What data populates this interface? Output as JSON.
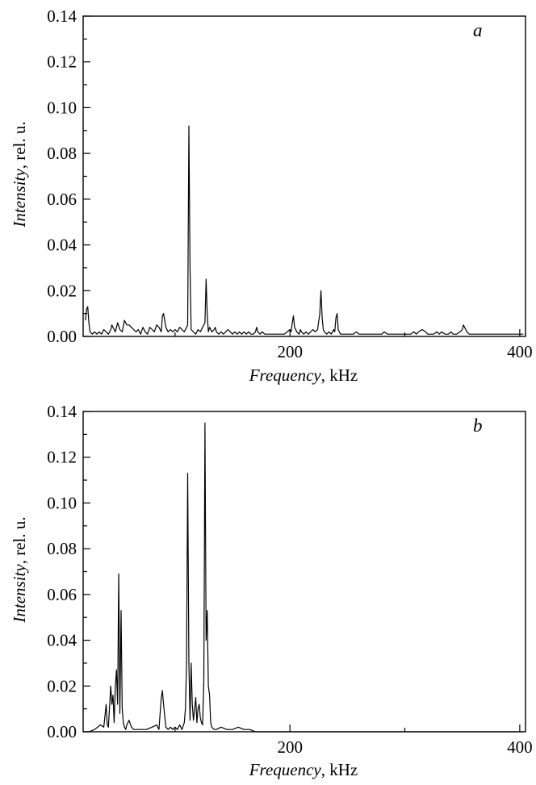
{
  "chart_data": [
    {
      "type": "line",
      "panel_label": "a",
      "xlabel_italic": "Frequency",
      "xlabel_unit": ", kHz",
      "ylabel_italic": "Intensity",
      "ylabel_unit": ", rel. u.",
      "xlim": [
        20,
        405
      ],
      "ylim": [
        0,
        0.14
      ],
      "x_ticks": [
        200,
        400
      ],
      "y_ticks": [
        0.0,
        0.02,
        0.04,
        0.06,
        0.08,
        0.1,
        0.12,
        0.14
      ],
      "x_tick_labels": [
        "200",
        "400"
      ],
      "y_tick_labels": [
        "0.00",
        "0.02",
        "0.04",
        "0.06",
        "0.08",
        "0.10",
        "0.12",
        "0.14"
      ],
      "grid": false,
      "series": [
        {
          "x": [
            22,
            23,
            24,
            25,
            26,
            28,
            30,
            32,
            34,
            36,
            38,
            40,
            42,
            44,
            45,
            46,
            48,
            49,
            50,
            52,
            54,
            56,
            58,
            60,
            62,
            64,
            66,
            68,
            70,
            72,
            74,
            76,
            78,
            80,
            82,
            84,
            86,
            88,
            89,
            90,
            92,
            94,
            96,
            98,
            100,
            102,
            104,
            106,
            108,
            110,
            111,
            112,
            113,
            114,
            116,
            118,
            120,
            122,
            124,
            126,
            127,
            128,
            129,
            130,
            132,
            134,
            135,
            136,
            138,
            140,
            142,
            144,
            146,
            148,
            150,
            152,
            154,
            156,
            158,
            160,
            162,
            164,
            166,
            168,
            170,
            171,
            172,
            174,
            176,
            178,
            180,
            185,
            190,
            195,
            200,
            201,
            202,
            203,
            204,
            206,
            208,
            209,
            210,
            212,
            214,
            216,
            218,
            220,
            222,
            224,
            226,
            227,
            228,
            229,
            230,
            232,
            234,
            236,
            238,
            239,
            240,
            241,
            242,
            244,
            246,
            250,
            255,
            258,
            260,
            262,
            265,
            270,
            275,
            280,
            282,
            285,
            290,
            295,
            300,
            305,
            308,
            310,
            312,
            315,
            318,
            320,
            322,
            325,
            328,
            330,
            332,
            335,
            338,
            340,
            342,
            345,
            348,
            350,
            351,
            352,
            354,
            356,
            358,
            360,
            365,
            370,
            375,
            380,
            385,
            390,
            395,
            400,
            403
          ],
          "y": [
            0.007,
            0.012,
            0.013,
            0.006,
            0.002,
            0.001,
            0.002,
            0.001,
            0.002,
            0.001,
            0.003,
            0.002,
            0.001,
            0.003,
            0.005,
            0.004,
            0.002,
            0.004,
            0.006,
            0.003,
            0.002,
            0.007,
            0.005,
            0.005,
            0.004,
            0.003,
            0.002,
            0.003,
            0.001,
            0.004,
            0.002,
            0.001,
            0.004,
            0.003,
            0.002,
            0.005,
            0.004,
            0.002,
            0.009,
            0.01,
            0.004,
            0.002,
            0.003,
            0.002,
            0.003,
            0.002,
            0.004,
            0.003,
            0.002,
            0.004,
            0.005,
            0.092,
            0.03,
            0.003,
            0.002,
            0.001,
            0.003,
            0.002,
            0.004,
            0.006,
            0.025,
            0.01,
            0.002,
            0.004,
            0.002,
            0.003,
            0.004,
            0.002,
            0.001,
            0.002,
            0.001,
            0.002,
            0.003,
            0.002,
            0.001,
            0.002,
            0.001,
            0.002,
            0.001,
            0.002,
            0.001,
            0.002,
            0.001,
            0.001,
            0.002,
            0.004,
            0.002,
            0.001,
            0.002,
            0.001,
            0.001,
            0.001,
            0.001,
            0.001,
            0.003,
            0.002,
            0.006,
            0.009,
            0.004,
            0.002,
            0.001,
            0.003,
            0.002,
            0.001,
            0.002,
            0.001,
            0.002,
            0.003,
            0.002,
            0.003,
            0.01,
            0.02,
            0.008,
            0.003,
            0.002,
            0.001,
            0.002,
            0.001,
            0.003,
            0.002,
            0.008,
            0.01,
            0.003,
            0.001,
            0.001,
            0.001,
            0.001,
            0.002,
            0.001,
            0.001,
            0.001,
            0.001,
            0.001,
            0.001,
            0.002,
            0.001,
            0.001,
            0.001,
            0.001,
            0.001,
            0.002,
            0.001,
            0.002,
            0.003,
            0.002,
            0.001,
            0.001,
            0.001,
            0.002,
            0.001,
            0.002,
            0.001,
            0.001,
            0.002,
            0.001,
            0.001,
            0.002,
            0.003,
            0.005,
            0.004,
            0.002,
            0.001,
            0.001,
            0.001,
            0.001,
            0.001,
            0.001,
            0.001,
            0.001,
            0.001,
            0.001,
            0.001,
            0.001
          ]
        }
      ]
    },
    {
      "type": "line",
      "panel_label": "b",
      "xlabel_italic": "Frequency",
      "xlabel_unit": ", kHz",
      "ylabel_italic": "Intensity",
      "ylabel_unit": ", rel. u.",
      "xlim": [
        20,
        405
      ],
      "ylim": [
        0,
        0.14
      ],
      "x_ticks": [
        200,
        400
      ],
      "y_ticks": [
        0.0,
        0.02,
        0.04,
        0.06,
        0.08,
        0.1,
        0.12,
        0.14
      ],
      "x_tick_labels": [
        "200",
        "400"
      ],
      "y_tick_labels": [
        "0.00",
        "0.02",
        "0.04",
        "0.06",
        "0.08",
        "0.10",
        "0.12",
        "0.14"
      ],
      "grid": false,
      "series": [
        {
          "x": [
            20,
            25,
            30,
            35,
            38,
            40,
            41,
            42,
            44,
            45,
            46,
            47,
            48,
            49,
            50,
            51,
            52,
            53,
            54,
            55,
            56,
            57,
            58,
            60,
            62,
            64,
            66,
            70,
            75,
            80,
            84,
            86,
            88,
            89,
            90,
            92,
            94,
            96,
            98,
            100,
            102,
            104,
            106,
            108,
            109,
            110,
            111,
            112,
            113,
            114,
            115,
            116,
            117,
            118,
            119,
            120,
            121,
            122,
            123,
            124,
            125,
            126,
            127,
            128,
            129,
            130,
            131,
            132,
            134,
            136,
            140,
            145,
            150,
            155,
            160,
            165,
            170,
            180,
            200,
            250,
            300,
            350,
            400,
            403
          ],
          "y": [
            0.0,
            0.0,
            0.001,
            0.003,
            0.002,
            0.012,
            0.003,
            0.002,
            0.02,
            0.012,
            0.016,
            0.004,
            0.02,
            0.027,
            0.012,
            0.069,
            0.008,
            0.053,
            0.01,
            0.004,
            0.002,
            0.001,
            0.003,
            0.005,
            0.002,
            0.001,
            0.001,
            0.001,
            0.001,
            0.002,
            0.003,
            0.001,
            0.015,
            0.018,
            0.012,
            0.002,
            0.001,
            0.002,
            0.001,
            0.002,
            0.001,
            0.003,
            0.001,
            0.004,
            0.01,
            0.03,
            0.113,
            0.03,
            0.005,
            0.03,
            0.012,
            0.005,
            0.01,
            0.015,
            0.004,
            0.01,
            0.012,
            0.006,
            0.004,
            0.003,
            0.022,
            0.135,
            0.04,
            0.053,
            0.02,
            0.016,
            0.004,
            0.002,
            0.001,
            0.001,
            0.002,
            0.001,
            0.001,
            0.002,
            0.001,
            0.001,
            0.0,
            0.0,
            0.0,
            0.0,
            0.0,
            0.0,
            0.0,
            0.0
          ]
        }
      ]
    }
  ]
}
